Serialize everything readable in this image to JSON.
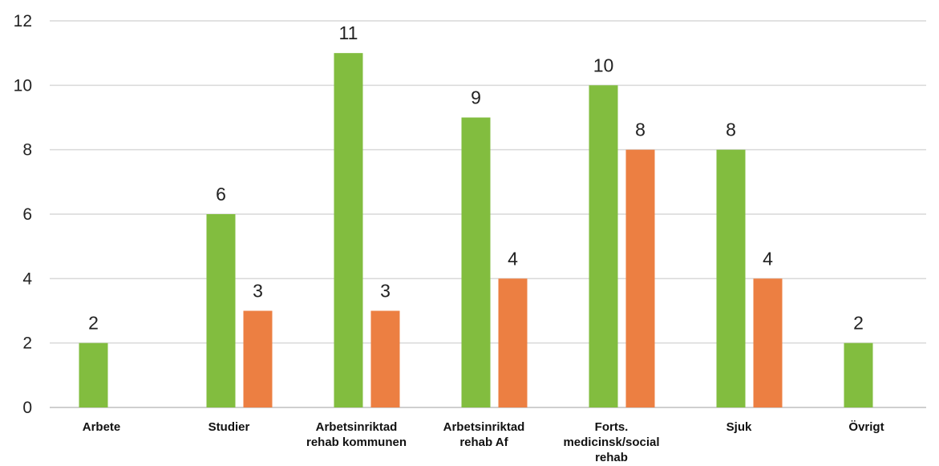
{
  "chart_data": {
    "type": "bar",
    "title": "",
    "xlabel": "",
    "ylabel": "",
    "ylim": [
      0,
      12
    ],
    "yticks": [
      0,
      2,
      4,
      6,
      8,
      10,
      12
    ],
    "grid": true,
    "legend": "none",
    "categories": [
      [
        "Arbete"
      ],
      [
        "Studier"
      ],
      [
        "Arbetsinriktad",
        "rehab kommunen"
      ],
      [
        "Arbetsinriktad",
        "rehab Af"
      ],
      [
        "Forts.",
        "medicinsk/social",
        "rehab"
      ],
      [
        "Sjuk"
      ],
      [
        "Övrigt"
      ]
    ],
    "series": [
      {
        "color": "#82bd3f",
        "values": [
          2,
          6,
          11,
          9,
          10,
          8,
          2
        ]
      },
      {
        "color": "#ec7f42",
        "values": [
          null,
          3,
          3,
          4,
          8,
          4,
          null
        ]
      }
    ]
  }
}
